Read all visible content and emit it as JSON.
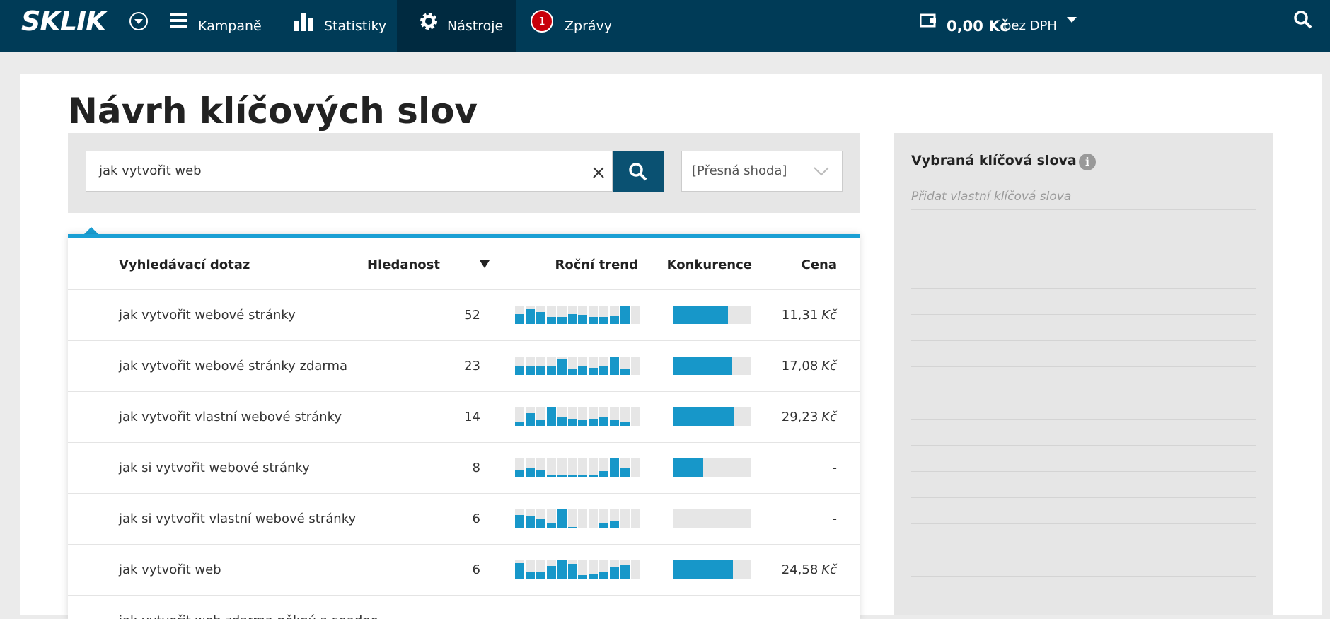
{
  "nav": {
    "logo": "SKLIK",
    "items": [
      "Kampaně",
      "Statistiky",
      "Nástroje",
      "Zprávy"
    ],
    "active": "Nástroje",
    "badge": "1",
    "balance": "0,00 Kč",
    "balance_note": "bez DPH"
  },
  "page": {
    "title": "Návrh klíčových slov",
    "search_value": "jak vytvořit web",
    "match_type": "[Přesná shoda]"
  },
  "table": {
    "columns": [
      "Vyhledávací dotaz",
      "Hledanost",
      "Roční trend",
      "Konkurence",
      "Cena"
    ],
    "rows": [
      {
        "query": "jak vytvořit webové stránky",
        "volume": 52,
        "trend": [
          55,
          80,
          65,
          40,
          40,
          55,
          50,
          40,
          40,
          45,
          100,
          0
        ],
        "competition": 70,
        "price": "11,31",
        "currency": "Kč"
      },
      {
        "query": "jak vytvořit webové stránky zdarma",
        "volume": 23,
        "trend": [
          45,
          45,
          45,
          45,
          90,
          35,
          45,
          40,
          45,
          100,
          35,
          0
        ],
        "competition": 75,
        "price": "17,08",
        "currency": "Kč"
      },
      {
        "query": "jak vytvořit vlastní webové stránky",
        "volume": 14,
        "trend": [
          25,
          70,
          30,
          100,
          45,
          40,
          30,
          40,
          45,
          30,
          20,
          0
        ],
        "competition": 77,
        "price": "29,23",
        "currency": "Kč"
      },
      {
        "query": "jak si vytvořit webové stránky",
        "volume": 8,
        "trend": [
          35,
          45,
          40,
          10,
          10,
          10,
          10,
          10,
          30,
          100,
          45,
          0
        ],
        "competition": 38,
        "price": "-"
      },
      {
        "query": "jak si vytvořit vlastní webové stránky",
        "volume": 6,
        "trend": [
          70,
          65,
          50,
          25,
          100,
          5,
          0,
          0,
          25,
          35,
          0,
          0
        ],
        "competition": 0,
        "price": "-"
      },
      {
        "query": "jak vytvořit web",
        "volume": 6,
        "trend": [
          85,
          40,
          40,
          70,
          100,
          80,
          20,
          25,
          40,
          65,
          75,
          0
        ],
        "competition": 76,
        "price": "24,58",
        "currency": "Kč"
      },
      {
        "query": "jak vytvořit web zdarma pěkný a snadno"
      }
    ]
  },
  "sidebar": {
    "title": "Vybraná klíčová slova",
    "placeholder": "Přidat vlastní klíčová slova"
  }
}
